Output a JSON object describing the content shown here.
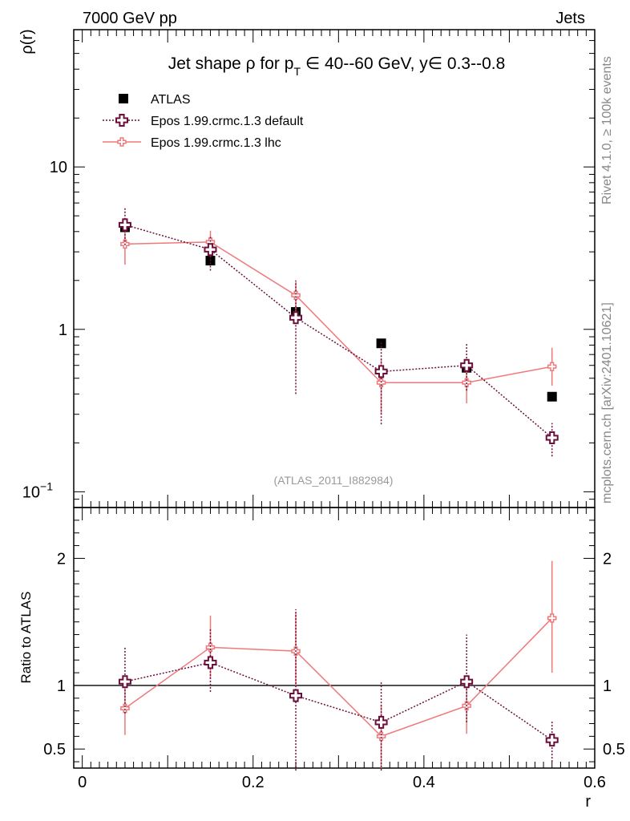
{
  "header": {
    "energy_label": "7000 GeV pp",
    "process_label": "Jets",
    "side_label_rivet": "Rivet 4.1.0, ≥ 100k events",
    "side_label_source": "mcplots.cern.ch [arXiv:2401.10621]",
    "analysis_id": "(ATLAS_2011_I882984)"
  },
  "colors": {
    "atlas": "#000000",
    "default": "#6b0f3a",
    "lhc": "#f07878",
    "reference_line": "#000000"
  },
  "chart_data": [
    {
      "type": "scatter",
      "panel": "main",
      "title_parts": {
        "prefix": "Jet shape ρ for p",
        "subscript": "T",
        "suffix": " ∈ 40--60 GeV, y∈ 0.3--0.8"
      },
      "ylabel": "ρ(r)",
      "xlabel": "r",
      "yscale": "log",
      "xlim": [
        -0.01,
        0.6
      ],
      "ylim": [
        0.08,
        70
      ],
      "ytick_labels": [
        {
          "value": 10,
          "label": "10"
        },
        {
          "value": 1,
          "label": "1"
        },
        {
          "value": 0.1,
          "label": "10",
          "exponent": "−1"
        }
      ],
      "x": [
        0.05,
        0.15,
        0.25,
        0.35,
        0.45,
        0.55
      ],
      "legend": {
        "position": "top-left",
        "entries": [
          {
            "name": "ATLAS",
            "style": "square"
          },
          {
            "name": "Epos 1.99.crmc.1.3 default",
            "style": "dotted-cross"
          },
          {
            "name": "Epos 1.99.crmc.1.3 lhc",
            "style": "solid-cross"
          }
        ]
      },
      "series": [
        {
          "name": "ATLAS",
          "values": [
            4.25,
            2.65,
            1.28,
            0.82,
            0.58,
            0.385
          ]
        },
        {
          "name": "Epos 1.99.crmc.1.3 default",
          "values": [
            4.4,
            3.1,
            1.18,
            0.55,
            0.6,
            0.215
          ],
          "err_low": [
            3.3,
            2.3,
            0.4,
            0.26,
            0.42,
            0.165
          ],
          "err_high": [
            5.6,
            3.8,
            2.0,
            0.85,
            0.82,
            0.265
          ]
        },
        {
          "name": "Epos 1.99.crmc.1.3 lhc",
          "values": [
            3.35,
            3.45,
            1.62,
            0.47,
            0.47,
            0.59
          ],
          "err_low": [
            2.5,
            2.8,
            1.28,
            0.3,
            0.35,
            0.45
          ],
          "err_high": [
            4.4,
            4.05,
            1.95,
            0.66,
            0.6,
            0.77
          ]
        }
      ]
    },
    {
      "type": "line",
      "panel": "ratio",
      "ylabel": "Ratio to ATLAS",
      "xlabel": "r",
      "ylim": [
        0.35,
        2.4
      ],
      "reference_value": 1,
      "ytick_labels": [
        {
          "value": 2,
          "label": "2"
        },
        {
          "value": 1,
          "label": "1"
        },
        {
          "value": 0.5,
          "label": "0.5"
        }
      ],
      "xtick_labels": [
        {
          "value": 0,
          "label": "0"
        },
        {
          "value": 0.2,
          "label": "0.2"
        },
        {
          "value": 0.4,
          "label": "0.4"
        },
        {
          "value": 0.6,
          "label": "0.6"
        }
      ],
      "x": [
        0.05,
        0.15,
        0.25,
        0.35,
        0.45,
        0.55
      ],
      "series": [
        {
          "name": "Epos 1.99.crmc.1.3 default",
          "values": [
            1.03,
            1.18,
            0.92,
            0.71,
            1.03,
            0.57
          ],
          "err_low": [
            0.78,
            0.95,
            0.33,
            0.33,
            0.71,
            0.4
          ],
          "err_high": [
            1.3,
            1.45,
            1.6,
            1.03,
            1.4,
            0.72
          ]
        },
        {
          "name": "Epos 1.99.crmc.1.3 lhc",
          "values": [
            0.82,
            1.3,
            1.27,
            0.6,
            0.84,
            1.53
          ],
          "err_low": [
            0.61,
            1.05,
            1.0,
            0.35,
            0.62,
            1.1
          ],
          "err_high": [
            1.03,
            1.55,
            1.57,
            0.85,
            1.03,
            1.98
          ]
        }
      ]
    }
  ]
}
